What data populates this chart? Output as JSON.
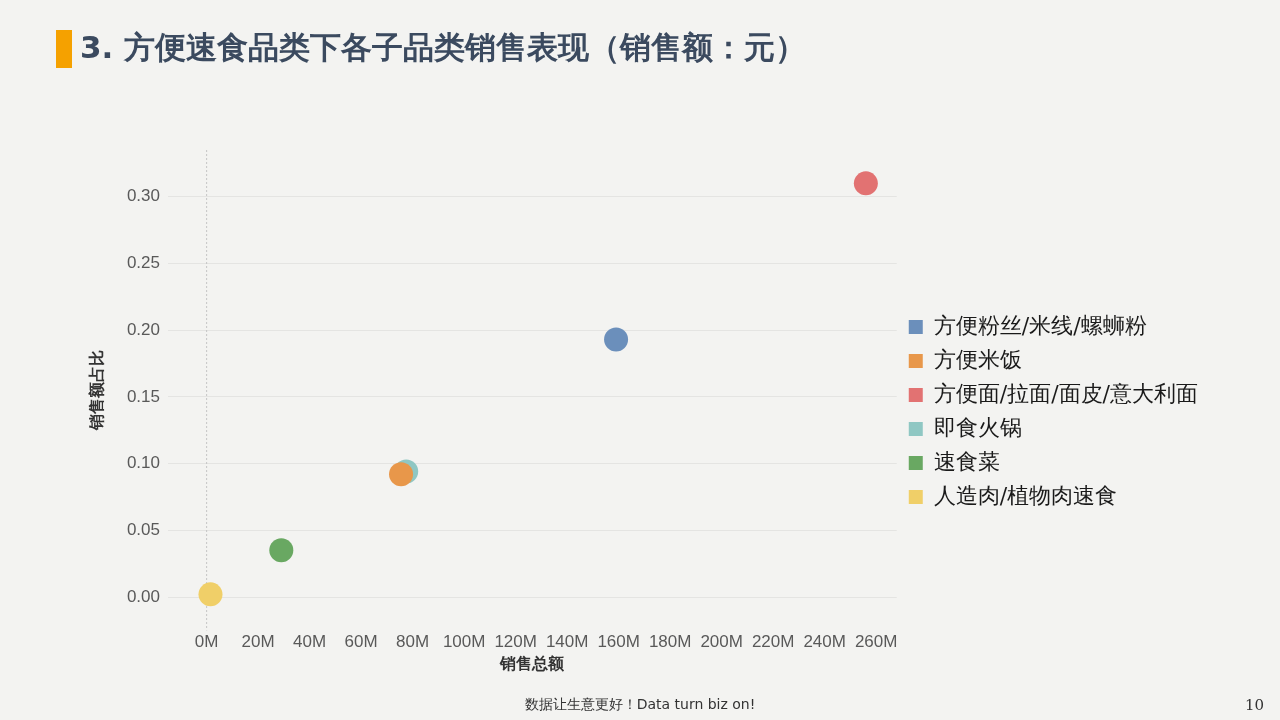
{
  "chart_data": {
    "type": "scatter",
    "title": "3. 方便速食品类下各子品类销售表现（销售额：元）",
    "xlabel": "销售总额",
    "ylabel": "销售额占比",
    "series": [
      {
        "name": "方便粉丝/米线/螺蛳粉",
        "color": "#6b8fbb",
        "x": [
          159
        ],
        "values": [
          0.193
        ]
      },
      {
        "name": "方便米饭",
        "color": "#e8974a",
        "x": [
          75.5
        ],
        "values": [
          0.092
        ]
      },
      {
        "name": "方便面/拉面/面皮/意大利面",
        "color": "#e27272",
        "x": [
          256
        ],
        "values": [
          0.31
        ]
      },
      {
        "name": "即食火锅",
        "color": "#8fc7c3",
        "x": [
          77.5
        ],
        "values": [
          0.094
        ]
      },
      {
        "name": "速食菜",
        "color": "#69a862",
        "x": [
          29
        ],
        "values": [
          0.035
        ]
      },
      {
        "name": "人造肉/植物肉速食",
        "color": "#f0cf68",
        "x": [
          1.5
        ],
        "values": [
          0.002
        ]
      }
    ],
    "xlim": [
      -15,
      268
    ],
    "xticks": [
      {
        "value": 0,
        "label": "0M"
      },
      {
        "value": 20,
        "label": "20M"
      },
      {
        "value": 40,
        "label": "40M"
      },
      {
        "value": 60,
        "label": "60M"
      },
      {
        "value": 80,
        "label": "80M"
      },
      {
        "value": 100,
        "label": "100M"
      },
      {
        "value": 120,
        "label": "120M"
      },
      {
        "value": 140,
        "label": "140M"
      },
      {
        "value": 160,
        "label": "160M"
      },
      {
        "value": 180,
        "label": "180M"
      },
      {
        "value": 200,
        "label": "200M"
      },
      {
        "value": 220,
        "label": "220M"
      },
      {
        "value": 240,
        "label": "240M"
      },
      {
        "value": 260,
        "label": "260M"
      }
    ],
    "ylim": [
      -0.025,
      0.335
    ],
    "yticks": [
      {
        "value": 0,
        "label": "0.00"
      },
      {
        "value": 0.05,
        "label": "0.05"
      },
      {
        "value": 0.1,
        "label": "0.10"
      },
      {
        "value": 0.15,
        "label": "0.15"
      },
      {
        "value": 0.2,
        "label": "0.20"
      },
      {
        "value": 0.25,
        "label": "0.25"
      },
      {
        "value": 0.3,
        "label": "0.30"
      }
    ],
    "ref_lines": [
      {
        "axis": "x",
        "value": 0,
        "color": "#c4c4c4",
        "line_style": "dotted"
      }
    ],
    "grid": "y",
    "legend": "right",
    "marker": "circle",
    "annotations": [
      "数据让生意更好！Data turn biz on!",
      "10"
    ]
  }
}
